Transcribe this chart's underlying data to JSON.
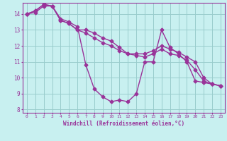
{
  "title": "",
  "xlabel": "Windchill (Refroidissement éolien,°C)",
  "ylabel": "",
  "bg_color": "#c8f0f0",
  "line_color": "#993399",
  "grid_color": "#99cccc",
  "axis_color": "#993399",
  "xlim": [
    -0.5,
    23.5
  ],
  "ylim": [
    7.8,
    14.7
  ],
  "yticks": [
    8,
    9,
    10,
    11,
    12,
    13,
    14
  ],
  "xticks": [
    0,
    1,
    2,
    3,
    4,
    5,
    6,
    7,
    8,
    9,
    10,
    11,
    12,
    13,
    14,
    15,
    16,
    17,
    18,
    19,
    20,
    21,
    22,
    23
  ],
  "series": [
    [
      14.0,
      14.1,
      14.5,
      14.5,
      13.7,
      13.5,
      13.2,
      10.8,
      9.3,
      8.8,
      8.5,
      8.6,
      8.5,
      9.0,
      11.0,
      11.0,
      13.0,
      11.9,
      11.5,
      11.0,
      9.8,
      9.7,
      9.6,
      9.5
    ],
    [
      14.0,
      14.2,
      14.6,
      14.5,
      13.6,
      13.4,
      13.0,
      13.0,
      12.8,
      12.5,
      12.3,
      11.9,
      11.5,
      11.5,
      11.5,
      11.7,
      12.0,
      11.8,
      11.6,
      11.3,
      11.0,
      10.0,
      9.6,
      9.5
    ],
    [
      14.0,
      14.2,
      14.6,
      14.5,
      13.6,
      13.4,
      13.0,
      12.8,
      12.5,
      12.2,
      12.0,
      11.7,
      11.5,
      11.4,
      11.3,
      11.5,
      11.8,
      11.5,
      11.4,
      11.1,
      10.5,
      9.8,
      9.6,
      9.5
    ]
  ],
  "marker": "D",
  "markersize": 2.5,
  "linewidth": 1.0
}
